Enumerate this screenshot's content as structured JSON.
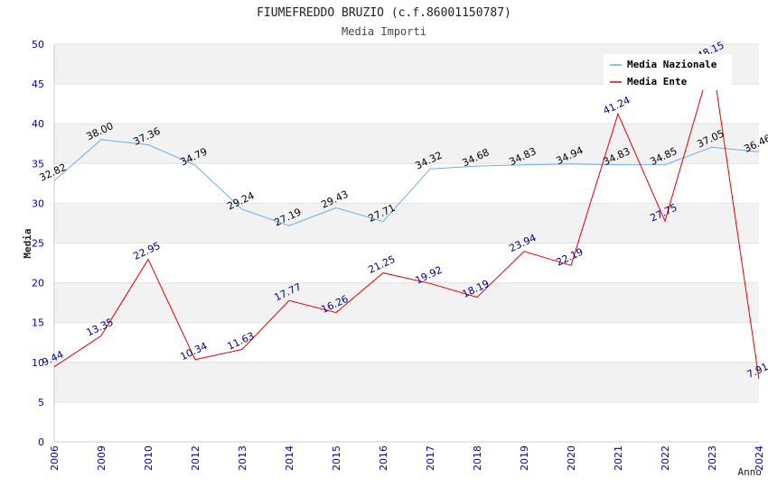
{
  "chart_data": {
    "type": "line",
    "title": "FIUMEFREDDO BRUZIO (c.f.86001150787)",
    "subtitle": "Media Importi",
    "xlabel": "Anno",
    "ylabel": "Media",
    "ylim": [
      0,
      50
    ],
    "yticks": [
      "0",
      "5",
      "10",
      "15",
      "20",
      "25",
      "30",
      "35",
      "40",
      "45",
      "50"
    ],
    "categories": [
      "2006",
      "2009",
      "2010",
      "2012",
      "2013",
      "2014",
      "2015",
      "2016",
      "2017",
      "2018",
      "2019",
      "2020",
      "2021",
      "2022",
      "2023",
      "2024"
    ],
    "grid": true,
    "legend_position": "top-right",
    "series": [
      {
        "name": "Media Nazionale",
        "color": "#6aaee8",
        "label_color": "#000000",
        "values": [
          32.82,
          38.0,
          37.36,
          34.79,
          29.24,
          27.19,
          29.43,
          27.71,
          34.32,
          34.68,
          34.83,
          34.94,
          34.83,
          34.85,
          37.05,
          36.46
        ],
        "labels": [
          "32.82",
          "38.00",
          "37.36",
          "34.79",
          "29.24",
          "27.19",
          "29.43",
          "27.71",
          "34.32",
          "34.68",
          "34.83",
          "34.94",
          "34.83",
          "34.85",
          "37.05",
          "36.46"
        ]
      },
      {
        "name": "Media Ente",
        "color": "#e00000",
        "label_color": "#000080",
        "values": [
          9.44,
          13.35,
          22.95,
          10.34,
          11.63,
          17.77,
          16.26,
          21.25,
          19.92,
          18.19,
          23.94,
          22.19,
          41.24,
          27.75,
          48.15,
          7.91
        ],
        "labels": [
          "9.44",
          "13.35",
          "22.95",
          "10.34",
          "11.63",
          "17.77",
          "16.26",
          "21.25",
          "19.92",
          "18.19",
          "23.94",
          "22.19",
          "41.24",
          "27.75",
          "48.15",
          "7.91"
        ]
      }
    ]
  }
}
